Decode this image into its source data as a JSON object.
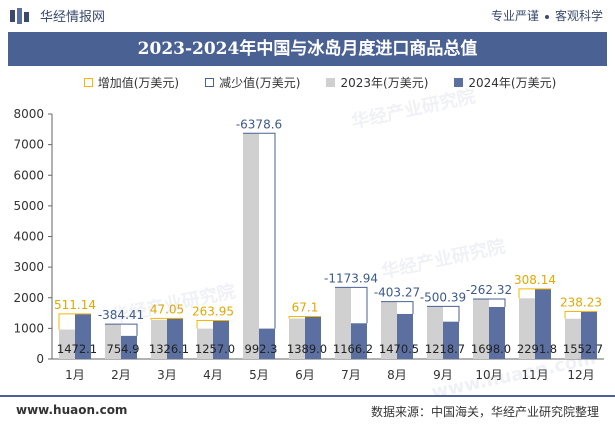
{
  "header": {
    "brand_name": "华经情报网",
    "slogan_left": "专业严谨",
    "slogan_right": "客观科学"
  },
  "footer": {
    "website": "www.huaon.com",
    "source": "数据来源：中国海关，华经产业研究院整理"
  },
  "watermarks": [
    "华经产业研究院",
    "www.huaon.com"
  ],
  "colors": {
    "title_bar": "#4a6194",
    "series_2023": "#d0d0d0",
    "series_2024": "#5b6fa0",
    "increase": "#f5b800",
    "decrease": "#4a6194"
  },
  "chart_data": {
    "type": "bar",
    "title": "2023-2024年中国与冰岛月度进口商品总值",
    "legend": [
      "增加值(万美元)",
      "减少值(万美元)",
      "2023年(万美元)",
      "2024年(万美元)"
    ],
    "legend_position": "top",
    "categories": [
      "1月",
      "2月",
      "3月",
      "4月",
      "5月",
      "6月",
      "7月",
      "8月",
      "9月",
      "10月",
      "11月",
      "12月"
    ],
    "ylim": [
      0,
      8000
    ],
    "yticks": [
      0,
      1000,
      2000,
      3000,
      4000,
      5000,
      6000,
      7000,
      8000
    ],
    "series": [
      {
        "name": "2023年(万美元)",
        "values": [
          961.0,
          1139.3,
          1279.1,
          993.1,
          7371.0,
          1321.9,
          2340.1,
          1873.8,
          1719.1,
          1960.3,
          1983.7,
          1314.5
        ]
      },
      {
        "name": "2024年(万美元)",
        "values": [
          1472.1,
          754.9,
          1326.1,
          1257.0,
          992.3,
          1389.0,
          1166.2,
          1470.5,
          1218.7,
          1698.0,
          2291.8,
          1552.7
        ]
      }
    ],
    "changes": [
      511.14,
      -384.41,
      47.05,
      263.95,
      -6378.6,
      67.1,
      -1173.94,
      -403.27,
      -500.39,
      -262.32,
      308.14,
      238.23
    ],
    "change_labels": [
      "511.14",
      "-384.41",
      "47.05",
      "263.95",
      "-6378.6",
      "67.1",
      "-1173.94",
      "-403.27",
      "-500.39",
      "-262.32",
      "308.14",
      "238.23"
    ],
    "value_labels_2024": [
      "1472.1",
      "754.9",
      "1326.1",
      "1257.0",
      "992.3",
      "1389.0",
      "1166.2",
      "1470.5",
      "1218.7",
      "1698.0",
      "2291.8",
      "1552.7"
    ],
    "grid": false
  }
}
